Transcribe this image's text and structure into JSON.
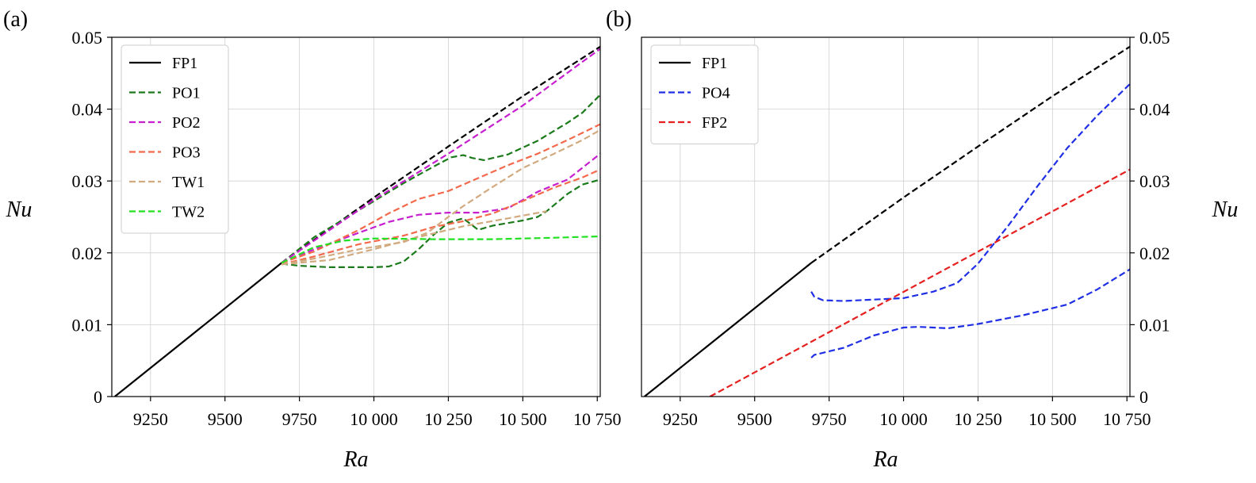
{
  "chart_data": [
    {
      "type": "line",
      "panel_label": "(a)",
      "xlabel": "Ra",
      "ylabel": "Nu",
      "ylabel_side": "left",
      "xlim": [
        9120,
        10760
      ],
      "ylim": [
        0,
        0.05
      ],
      "x_ticks": [
        9250,
        9500,
        9750,
        10000,
        10250,
        10500,
        10750
      ],
      "x_tick_labels": [
        "9250",
        "9500",
        "9750",
        "10 000",
        "10 250",
        "10 500",
        "10 750"
      ],
      "y_ticks": [
        0,
        0.01,
        0.02,
        0.03,
        0.04,
        0.05
      ],
      "y_tick_labels": [
        "0",
        "0.01",
        "0.02",
        "0.03",
        "0.04",
        "0.05"
      ],
      "grid": true,
      "legend_position": "top-left",
      "legend": [
        {
          "name": "FP1",
          "color": "#000000",
          "dashed": false
        },
        {
          "name": "PO1",
          "color": "#1a7a1a",
          "dashed": true
        },
        {
          "name": "PO2",
          "color": "#c71fcf",
          "dashed": true
        },
        {
          "name": "PO3",
          "color": "#f4694b",
          "dashed": true
        },
        {
          "name": "TW1",
          "color": "#d2aa80",
          "dashed": true
        },
        {
          "name": "TW2",
          "color": "#22e022",
          "dashed": true
        }
      ],
      "series": [
        {
          "name": "FP1",
          "color": "#000000",
          "dashed": false,
          "x": [
            9130,
            9690
          ],
          "y": [
            0.0,
            0.0186
          ]
        },
        {
          "color": "#000000",
          "dashed": true,
          "x": [
            9690,
            10000,
            10250,
            10500,
            10760
          ],
          "y": [
            0.0186,
            0.0277,
            0.0348,
            0.0418,
            0.0487
          ]
        },
        {
          "name": "PO1",
          "color": "#1a7a1a",
          "dashed": true,
          "x": [
            9690,
            9800,
            10000,
            10100,
            10200,
            10260,
            10300,
            10330,
            10370,
            10450,
            10550,
            10650,
            10700,
            10760
          ],
          "y": [
            0.0186,
            0.0222,
            0.0272,
            0.0297,
            0.032,
            0.0333,
            0.0336,
            0.0332,
            0.0329,
            0.0337,
            0.0356,
            0.0381,
            0.0395,
            0.042
          ]
        },
        {
          "color": "#1a7a1a",
          "dashed": true,
          "x": [
            9690,
            9750,
            9850,
            10000,
            10050,
            10100,
            10150,
            10200,
            10250,
            10300,
            10350,
            10400,
            10500,
            10550,
            10580,
            10650,
            10700,
            10760
          ],
          "y": [
            0.0185,
            0.0182,
            0.018,
            0.018,
            0.0181,
            0.0188,
            0.0205,
            0.0225,
            0.0242,
            0.0248,
            0.0232,
            0.0238,
            0.0245,
            0.025,
            0.0258,
            0.0282,
            0.0295,
            0.0302
          ]
        },
        {
          "name": "PO2",
          "color": "#c71fcf",
          "dashed": true,
          "x": [
            9690,
            10000,
            10250,
            10500,
            10760
          ],
          "y": [
            0.0186,
            0.0274,
            0.0338,
            0.0405,
            0.0484
          ]
        },
        {
          "color": "#c71fcf",
          "dashed": true,
          "x": [
            9690,
            9800,
            9950,
            10050,
            10150,
            10250,
            10350,
            10450,
            10550,
            10650,
            10760
          ],
          "y": [
            0.0186,
            0.0205,
            0.0228,
            0.0243,
            0.0253,
            0.0256,
            0.0256,
            0.0262,
            0.0285,
            0.0302,
            0.0338
          ]
        },
        {
          "name": "PO3",
          "color": "#f4694b",
          "dashed": true,
          "x": [
            9690,
            9800,
            9950,
            10050,
            10150,
            10250,
            10350,
            10450,
            10550,
            10650,
            10760
          ],
          "y": [
            0.0186,
            0.0202,
            0.0232,
            0.0255,
            0.0275,
            0.0286,
            0.0304,
            0.0322,
            0.0338,
            0.0357,
            0.0379
          ]
        },
        {
          "color": "#f4694b",
          "dashed": true,
          "x": [
            9690,
            9800,
            9950,
            10100,
            10200,
            10300,
            10400,
            10500,
            10600,
            10700,
            10760
          ],
          "y": [
            0.0184,
            0.0195,
            0.0212,
            0.0224,
            0.0236,
            0.0244,
            0.0255,
            0.0272,
            0.029,
            0.0305,
            0.0316
          ]
        },
        {
          "name": "TW1",
          "color": "#d2aa80",
          "dashed": true,
          "x": [
            9690,
            9800,
            9950,
            10100,
            10180,
            10250,
            10300,
            10400,
            10500,
            10600,
            10700,
            10760
          ],
          "y": [
            0.0184,
            0.0192,
            0.0205,
            0.0215,
            0.0228,
            0.025,
            0.0265,
            0.0292,
            0.0318,
            0.0337,
            0.0357,
            0.0371
          ]
        },
        {
          "color": "#d2aa80",
          "dashed": true,
          "x": [
            9690,
            9850,
            10000,
            10150,
            10300,
            10450,
            10580
          ],
          "y": [
            0.0184,
            0.019,
            0.0205,
            0.0222,
            0.0237,
            0.0248,
            0.0258
          ]
        },
        {
          "name": "TW2",
          "color": "#22e022",
          "dashed": true,
          "x": [
            9690,
            9800,
            9900,
            10000,
            10200,
            10400,
            10600,
            10760
          ],
          "y": [
            0.0186,
            0.0208,
            0.0217,
            0.022,
            0.0219,
            0.0219,
            0.0221,
            0.0223
          ]
        }
      ]
    },
    {
      "type": "line",
      "panel_label": "(b)",
      "xlabel": "Ra",
      "ylabel": "Nu",
      "ylabel_side": "right",
      "xlim": [
        9120,
        10760
      ],
      "ylim": [
        0,
        0.05
      ],
      "x_ticks": [
        9250,
        9500,
        9750,
        10000,
        10250,
        10500,
        10750
      ],
      "x_tick_labels": [
        "9250",
        "9500",
        "9750",
        "10 000",
        "10 250",
        "10 500",
        "10 750"
      ],
      "y_ticks": [
        0,
        0.01,
        0.02,
        0.03,
        0.04,
        0.05
      ],
      "y_tick_labels": [
        "0",
        "0.01",
        "0.02",
        "0.03",
        "0.04",
        "0.05"
      ],
      "grid": true,
      "legend_position": "top-left",
      "legend": [
        {
          "name": "FP1",
          "color": "#000000",
          "dashed": false
        },
        {
          "name": "PO4",
          "color": "#1f2fe6",
          "dashed": true
        },
        {
          "name": "FP2",
          "color": "#e61f1f",
          "dashed": true
        }
      ],
      "series": [
        {
          "name": "FP1",
          "color": "#000000",
          "dashed": false,
          "x": [
            9130,
            9690
          ],
          "y": [
            0.0,
            0.0186
          ]
        },
        {
          "color": "#000000",
          "dashed": true,
          "x": [
            9690,
            10000,
            10250,
            10500,
            10760
          ],
          "y": [
            0.0186,
            0.0277,
            0.0348,
            0.0418,
            0.0487
          ]
        },
        {
          "name": "PO4",
          "color": "#1f2fe6",
          "dashed": true,
          "x": [
            9690,
            9700,
            9730,
            9800,
            9900,
            10000,
            10100,
            10180,
            10250,
            10350,
            10450,
            10550,
            10650,
            10760
          ],
          "y": [
            0.0146,
            0.0139,
            0.0134,
            0.0133,
            0.0135,
            0.0137,
            0.0146,
            0.0158,
            0.0185,
            0.0237,
            0.0293,
            0.0346,
            0.0391,
            0.0435
          ]
        },
        {
          "color": "#1f2fe6",
          "dashed": true,
          "x": [
            9690,
            9700,
            9800,
            9900,
            10000,
            10050,
            10100,
            10150,
            10250,
            10400,
            10550,
            10650,
            10760
          ],
          "y": [
            0.0054,
            0.0058,
            0.0068,
            0.0085,
            0.0096,
            0.0097,
            0.0096,
            0.0095,
            0.0101,
            0.0113,
            0.0128,
            0.0149,
            0.0177
          ]
        },
        {
          "name": "FP2",
          "color": "#e61f1f",
          "dashed": true,
          "x": [
            9350,
            10760
          ],
          "y": [
            0.0,
            0.0316
          ]
        }
      ]
    }
  ]
}
